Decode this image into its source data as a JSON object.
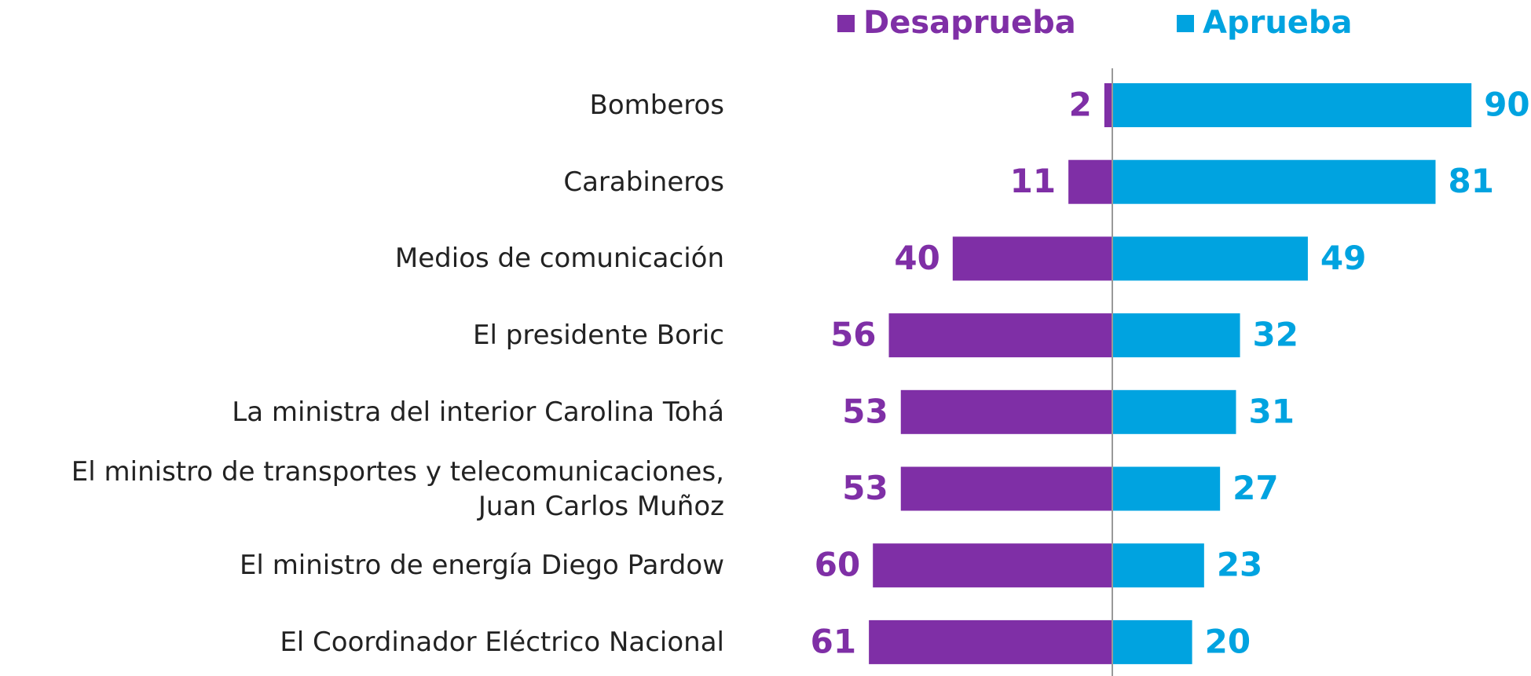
{
  "chart_data": {
    "type": "diverging-bar",
    "categories": [
      "Bomberos",
      "Carabineros",
      "Medios de comunicación",
      "El presidente Boric",
      "La ministra del interior Carolina Tohá",
      "El ministro de transportes y telecomunicaciones,\nJuan Carlos Muñoz",
      "El ministro de energía Diego Pardow",
      "El Coordinador Eléctrico Nacional"
    ],
    "series": [
      {
        "name": "Desaprueba",
        "color": "#7f2fa6",
        "values": [
          2,
          11,
          40,
          56,
          53,
          53,
          60,
          61
        ]
      },
      {
        "name": "Aprueba",
        "color": "#00a3e0",
        "values": [
          90,
          81,
          49,
          32,
          31,
          27,
          23,
          20
        ]
      }
    ],
    "legend": "top"
  }
}
